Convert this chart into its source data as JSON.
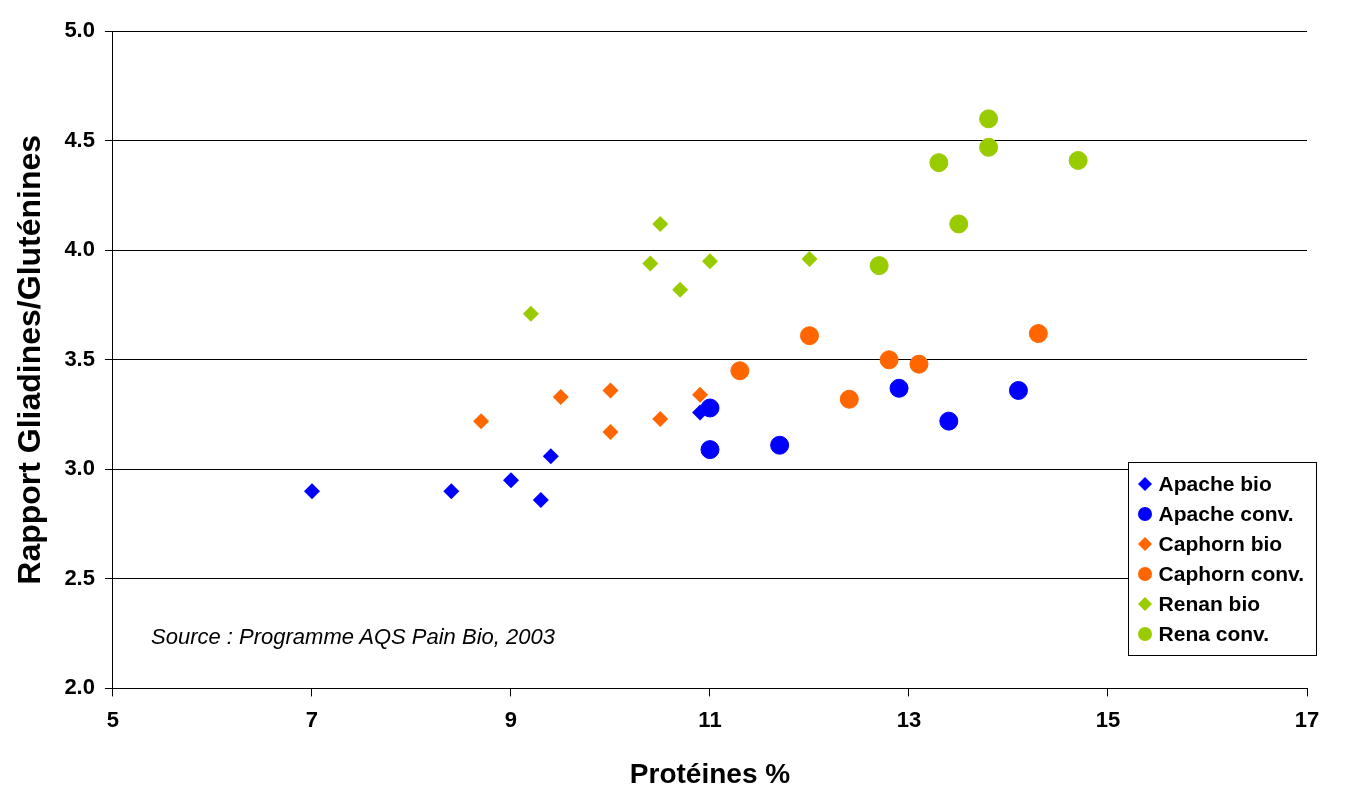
{
  "chart_data": {
    "type": "scatter",
    "xlabel": "Protéines %",
    "ylabel": "Rapport Gliadines/Gluténines",
    "xlim": [
      5,
      17
    ],
    "xticks": [
      5,
      7,
      9,
      11,
      13,
      15,
      17
    ],
    "ylim": [
      2,
      5
    ],
    "yticks": [
      {
        "value": 2,
        "label": "2.0"
      },
      {
        "value": 2.5,
        "label": "2.5"
      },
      {
        "value": 3,
        "label": "3.0"
      },
      {
        "value": 3.5,
        "label": "3.5"
      },
      {
        "value": 4,
        "label": "4.0"
      },
      {
        "value": 4.5,
        "label": "4.5"
      },
      {
        "value": 5,
        "label": "5.0"
      }
    ],
    "grid": "y",
    "legend": "bottom right",
    "annotations": [
      "Source : Programme AQS Pain Bio, 2003"
    ],
    "series": [
      {
        "name": "Apache bio",
        "color": "#0000ff",
        "marker": "diamond",
        "x": [
          7.0,
          8.4,
          9.0,
          9.3,
          9.4,
          10.9
        ],
        "values": [
          2.9,
          2.9,
          2.95,
          2.86,
          3.06,
          3.26
        ]
      },
      {
        "name": "Apache conv.",
        "color": "#0000ff",
        "marker": "circle",
        "x": [
          11.0,
          11.0,
          11.7,
          12.9,
          13.4,
          14.1
        ],
        "values": [
          3.28,
          3.09,
          3.11,
          3.37,
          3.22,
          3.36
        ]
      },
      {
        "name": "Caphorn bio",
        "color": "#ff6600",
        "marker": "diamond",
        "x": [
          8.7,
          9.5,
          10.0,
          10.0,
          10.5,
          10.9
        ],
        "values": [
          3.22,
          3.33,
          3.36,
          3.17,
          3.23,
          3.34
        ]
      },
      {
        "name": "Caphorn conv.",
        "color": "#ff6600",
        "marker": "circle",
        "x": [
          11.3,
          12.0,
          12.4,
          12.8,
          13.1,
          14.3
        ],
        "values": [
          3.45,
          3.61,
          3.32,
          3.5,
          3.48,
          3.62
        ]
      },
      {
        "name": "Renan bio",
        "color": "#99cc00",
        "marker": "diamond",
        "x": [
          9.2,
          10.4,
          10.5,
          10.7,
          11.0,
          12.0
        ],
        "values": [
          3.71,
          3.94,
          4.12,
          3.82,
          3.95,
          3.96
        ]
      },
      {
        "name": "Rena conv.",
        "color": "#99cc00",
        "marker": "circle",
        "x": [
          12.7,
          13.3,
          13.5,
          13.8,
          13.8,
          14.7
        ],
        "values": [
          3.93,
          4.4,
          4.12,
          4.6,
          4.47,
          4.41
        ]
      }
    ]
  }
}
